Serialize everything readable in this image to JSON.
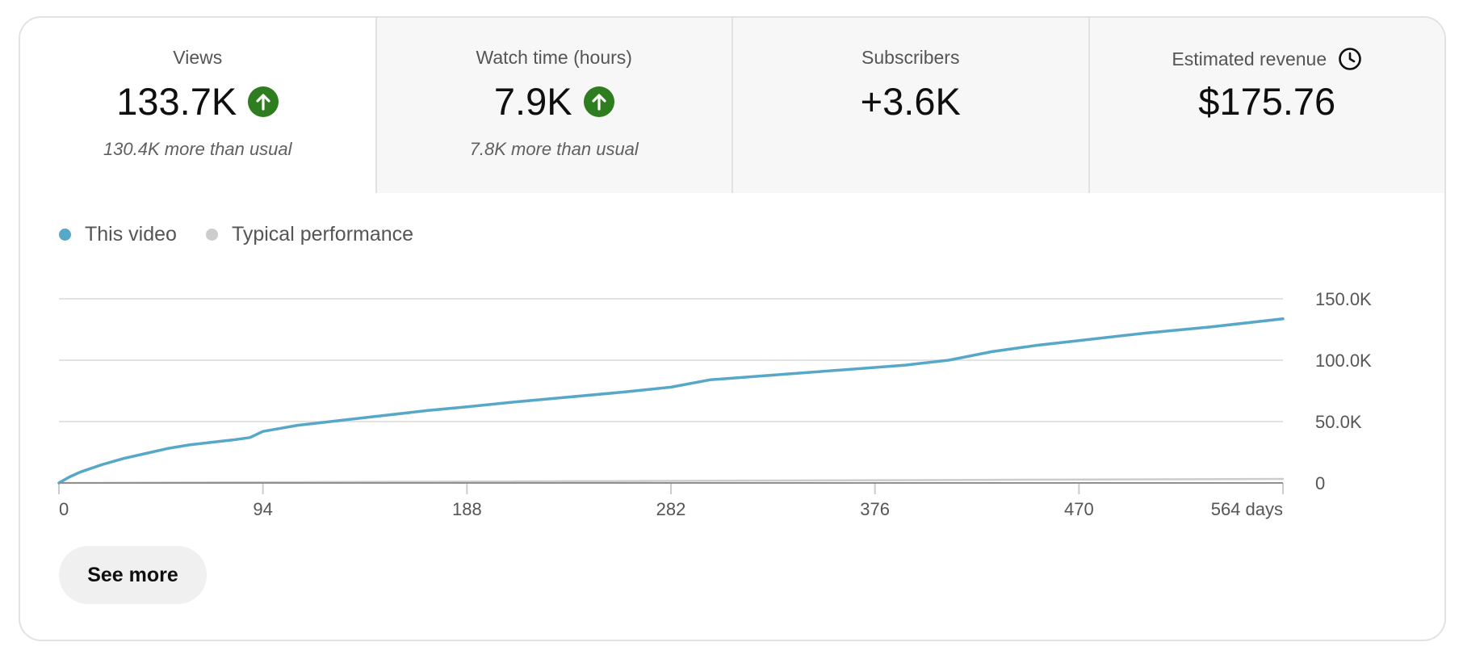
{
  "metrics": [
    {
      "label": "Views",
      "value": "133.7K",
      "note": "130.4K more than usual",
      "icon": "arrow-up-circle-icon",
      "icon_color": "#2e7d1e"
    },
    {
      "label": "Watch time (hours)",
      "value": "7.9K",
      "note": "7.8K more than usual",
      "icon": "arrow-up-circle-icon",
      "icon_color": "#2e7d1e"
    },
    {
      "label": "Subscribers",
      "value": "+3.6K",
      "note": ""
    },
    {
      "label": "Estimated revenue",
      "value": "$175.76",
      "note": "",
      "label_icon": "clock-icon"
    }
  ],
  "legend": [
    {
      "label": "This video",
      "color": "#56a7c8"
    },
    {
      "label": "Typical performance",
      "color": "#cccccc"
    }
  ],
  "chart_data": {
    "type": "line",
    "x_ticks": [
      "0",
      "94",
      "188",
      "282",
      "376",
      "470",
      "564 days"
    ],
    "y_ticks": [
      "0",
      "50.0K",
      "100.0K",
      "150.0K"
    ],
    "xlim": [
      0,
      564
    ],
    "ylim": [
      0,
      150000
    ],
    "grid": true,
    "legend_position": "top-left",
    "series": [
      {
        "name": "This video",
        "color": "#56a7c8",
        "x": [
          0,
          5,
          10,
          20,
          30,
          40,
          50,
          60,
          70,
          80,
          88,
          94,
          110,
          130,
          150,
          170,
          188,
          210,
          235,
          260,
          282,
          300,
          330,
          360,
          390,
          410,
          430,
          450,
          470,
          500,
          530,
          564
        ],
        "y": [
          0,
          5000,
          9000,
          15000,
          20000,
          24000,
          28000,
          31000,
          33000,
          35000,
          37000,
          42000,
          47000,
          51000,
          55000,
          59000,
          62000,
          66000,
          70000,
          74000,
          78000,
          84000,
          88000,
          92000,
          96000,
          100000,
          107000,
          112000,
          116000,
          122000,
          127000,
          133700
        ]
      },
      {
        "name": "Typical performance",
        "color": "#cccccc",
        "x": [
          0,
          564
        ],
        "y": [
          0,
          3300
        ]
      }
    ]
  },
  "see_more_label": "See more"
}
